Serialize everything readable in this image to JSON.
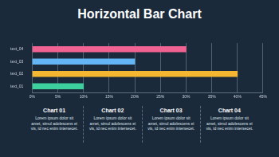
{
  "chart_data": {
    "type": "bar",
    "title": "Horizontal Bar Chart",
    "orientation": "horizontal",
    "categories": [
      "text_04",
      "text_03",
      "text_02",
      "text_01"
    ],
    "values": [
      30,
      20,
      40,
      10
    ],
    "colors": [
      "#f06292",
      "#64b5f6",
      "#f5b731",
      "#3ecf9e"
    ],
    "xlim": [
      0,
      45
    ],
    "xticks": [
      {
        "value": 0,
        "label": "0%"
      },
      {
        "value": 5,
        "label": "5%"
      },
      {
        "value": 10,
        "label": "10%"
      },
      {
        "value": 15,
        "label": "15%"
      },
      {
        "value": 20,
        "label": "20%"
      },
      {
        "value": 25,
        "label": "25%"
      },
      {
        "value": 30,
        "label": "30%"
      },
      {
        "value": 35,
        "label": "35%"
      },
      {
        "value": 40,
        "label": "40%"
      },
      {
        "value": 45,
        "label": "45%"
      }
    ],
    "grid": true
  },
  "panels": [
    {
      "title": "Chart 01",
      "text": "Lorem ipsum dolor sit amet, simul adolescens ei vis, id nec enim intersecet."
    },
    {
      "title": "Chart 02",
      "text": "Lorem ipsum dolor sit amet, simul adolescens ei vis, id nec enim intersecet."
    },
    {
      "title": "Chart 03",
      "text": "Lorem ipsum dolor sit amet, simul adolescens ei vis, id nec enim intersecet."
    },
    {
      "title": "Chart 04",
      "text": "Lorem ipsum dolor sit amet, simul adolescens ei vis, id nec enim intersecet."
    }
  ]
}
